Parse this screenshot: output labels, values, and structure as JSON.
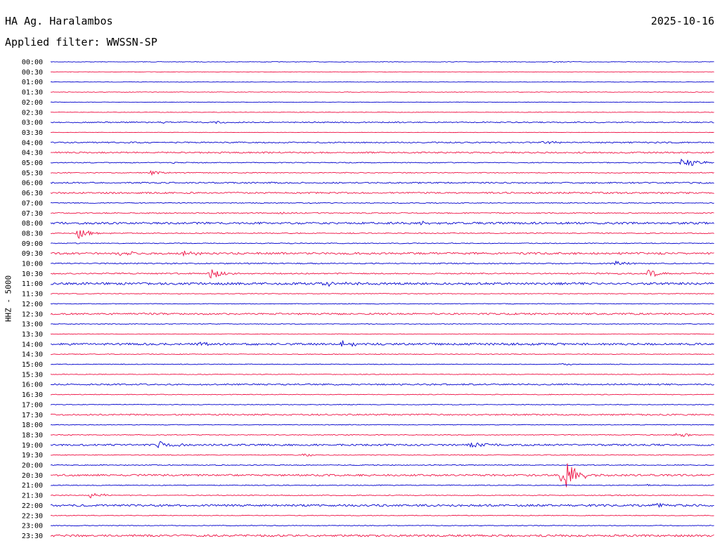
{
  "header": {
    "station": "HA Ag. Haralambos",
    "date": "2025-10-16",
    "filter": "Applied filter: WWSSN-SP"
  },
  "chart_data": {
    "type": "line",
    "title": "HA Ag. Haralambos",
    "ylabel": "HHZ - 5000",
    "colors": [
      "#0000cc",
      "#ee1144"
    ],
    "rows": [
      "00:00",
      "00:30",
      "01:00",
      "01:30",
      "02:00",
      "02:30",
      "03:00",
      "03:30",
      "04:00",
      "04:30",
      "05:00",
      "05:30",
      "06:00",
      "06:30",
      "07:00",
      "07:30",
      "08:00",
      "08:30",
      "09:00",
      "09:30",
      "10:00",
      "10:30",
      "11:00",
      "11:30",
      "12:00",
      "12:30",
      "13:00",
      "13:30",
      "14:00",
      "14:30",
      "15:00",
      "15:30",
      "16:00",
      "16:30",
      "17:00",
      "17:30",
      "18:00",
      "18:30",
      "19:00",
      "19:30",
      "20:00",
      "20:30",
      "21:00",
      "21:30",
      "22:00",
      "22:30",
      "23:00",
      "23:30"
    ],
    "noise": [
      0.4,
      0.3,
      0.3,
      0.4,
      0.3,
      0.4,
      0.8,
      0.3,
      0.9,
      1.0,
      0.6,
      0.6,
      1.0,
      1.1,
      0.6,
      0.8,
      1.4,
      0.7,
      0.6,
      1.4,
      0.8,
      0.9,
      1.5,
      0.5,
      0.5,
      1.2,
      0.5,
      0.4,
      1.4,
      0.5,
      0.5,
      0.5,
      1.0,
      0.5,
      0.5,
      1.0,
      0.5,
      0.6,
      1.2,
      0.6,
      0.6,
      1.3,
      0.6,
      0.6,
      1.4,
      0.5,
      0.5,
      1.4
    ],
    "events": [
      {
        "row": "00:00",
        "t": 0.76,
        "amp": 1.2
      },
      {
        "row": "03:00",
        "t": 0.17,
        "amp": 1.5
      },
      {
        "row": "03:00",
        "t": 0.25,
        "amp": 1.3
      },
      {
        "row": "04:00",
        "t": 0.74,
        "amp": 3.0
      },
      {
        "row": "05:00",
        "t": 0.18,
        "amp": 2.0
      },
      {
        "row": "05:00",
        "t": 0.95,
        "amp": 10
      },
      {
        "row": "05:30",
        "t": 0.15,
        "amp": 4
      },
      {
        "row": "07:30",
        "t": 0.34,
        "amp": 1.5
      },
      {
        "row": "08:00",
        "t": 0.56,
        "amp": 3
      },
      {
        "row": "08:30",
        "t": 0.04,
        "amp": 9
      },
      {
        "row": "09:30",
        "t": 0.1,
        "amp": 5
      },
      {
        "row": "09:30",
        "t": 0.2,
        "amp": 4
      },
      {
        "row": "10:00",
        "t": 0.85,
        "amp": 3
      },
      {
        "row": "10:30",
        "t": 0.24,
        "amp": 8
      },
      {
        "row": "10:30",
        "t": 0.9,
        "amp": 6
      },
      {
        "row": "11:00",
        "t": 0.41,
        "amp": 7
      },
      {
        "row": "14:00",
        "t": 0.22,
        "amp": 3
      },
      {
        "row": "14:00",
        "t": 0.44,
        "amp": 5
      },
      {
        "row": "15:00",
        "t": 0.77,
        "amp": 2
      },
      {
        "row": "18:30",
        "t": 0.94,
        "amp": 4
      },
      {
        "row": "19:00",
        "t": 0.16,
        "amp": 6
      },
      {
        "row": "19:00",
        "t": 0.63,
        "amp": 5
      },
      {
        "row": "19:30",
        "t": 0.38,
        "amp": 2
      },
      {
        "row": "20:30",
        "t": 0.77,
        "amp": 28
      },
      {
        "row": "21:00",
        "t": 0.9,
        "amp": 2
      },
      {
        "row": "21:30",
        "t": 0.06,
        "amp": 5
      },
      {
        "row": "22:00",
        "t": 0.91,
        "amp": 3
      }
    ]
  }
}
